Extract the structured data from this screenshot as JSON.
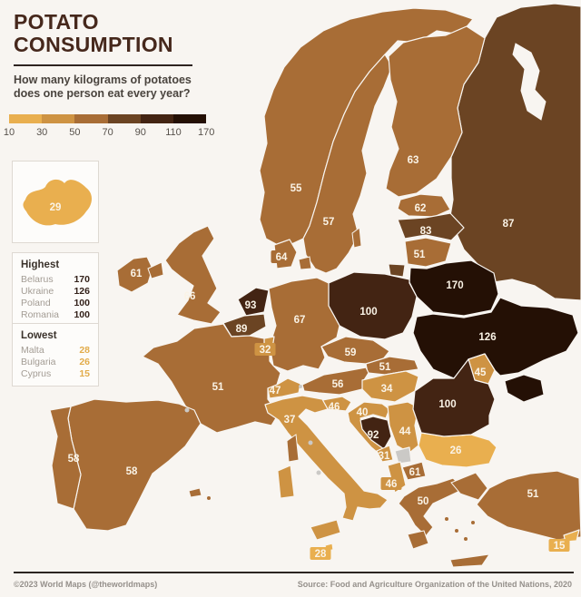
{
  "title": {
    "line1": "POTATO",
    "line2": "CONSUMPTION"
  },
  "subtitle": {
    "line1": "How many kilograms of potatoes",
    "line2": "does one person eat every year?"
  },
  "legend": {
    "ticks": [
      "10",
      "30",
      "50",
      "70",
      "90",
      "110",
      "170"
    ],
    "colors": [
      "#E9AF4F",
      "#CE9343",
      "#A86D36",
      "#6B4423",
      "#432413",
      "#241005"
    ],
    "thresholds": [
      30,
      50,
      70,
      90,
      110
    ]
  },
  "highest": {
    "heading": "Highest",
    "rows": [
      {
        "name": "Belarus",
        "value": "170"
      },
      {
        "name": "Ukraine",
        "value": "126"
      },
      {
        "name": "Poland",
        "value": "100"
      },
      {
        "name": "Romania",
        "value": "100"
      }
    ]
  },
  "lowest": {
    "heading": "Lowest",
    "rows": [
      {
        "name": "Malta",
        "value": "28"
      },
      {
        "name": "Bulgaria",
        "value": "26"
      },
      {
        "name": "Cyprus",
        "value": "15"
      }
    ]
  },
  "footer": {
    "left": "©2023 World Maps (@theworldmaps)",
    "right": "Source: Food and Agriculture Organization of the United Nations, 2020"
  },
  "colors": {
    "background": "#F8F5F1",
    "sea": "#F8F5F1",
    "border": "#F8F5F1",
    "no_data": "#CBC9C6",
    "label_text": "#FAF3E6",
    "title": "#46281C"
  },
  "map": {
    "countries": [
      {
        "id": "russia",
        "name": "Russia",
        "value": 87
      },
      {
        "id": "norway",
        "name": "Norway",
        "value": 55
      },
      {
        "id": "sweden",
        "name": "Sweden",
        "value": 57
      },
      {
        "id": "finland",
        "name": "Finland",
        "value": 63
      },
      {
        "id": "estonia",
        "name": "Estonia",
        "value": 62
      },
      {
        "id": "latvia",
        "name": "Latvia",
        "value": 83
      },
      {
        "id": "lithuania",
        "name": "Lithuania",
        "value": 51
      },
      {
        "id": "belarus",
        "name": "Belarus",
        "value": 170
      },
      {
        "id": "ukraine",
        "name": "Ukraine",
        "value": 126
      },
      {
        "id": "moldova",
        "name": "Moldova",
        "value": 45
      },
      {
        "id": "poland",
        "name": "Poland",
        "value": 100
      },
      {
        "id": "germany",
        "name": "Germany",
        "value": 67
      },
      {
        "id": "denmark",
        "name": "Denmark",
        "value": 64
      },
      {
        "id": "netherlands",
        "name": "Netherlands",
        "value": 93
      },
      {
        "id": "belgium",
        "name": "Belgium",
        "value": 89
      },
      {
        "id": "luxembourg",
        "name": "Luxembourg",
        "value": 32
      },
      {
        "id": "uk",
        "name": "United Kingdom",
        "value": 66
      },
      {
        "id": "ireland",
        "name": "Ireland",
        "value": 61
      },
      {
        "id": "france",
        "name": "France",
        "value": 51
      },
      {
        "id": "switzerland",
        "name": "Switzerland",
        "value": 47
      },
      {
        "id": "czechia",
        "name": "Czechia",
        "value": 59
      },
      {
        "id": "slovakia",
        "name": "Slovakia",
        "value": 51
      },
      {
        "id": "austria",
        "name": "Austria",
        "value": 56
      },
      {
        "id": "hungary",
        "name": "Hungary",
        "value": 34
      },
      {
        "id": "slovenia",
        "name": "Slovenia",
        "value": 46
      },
      {
        "id": "croatia",
        "name": "Croatia",
        "value": 40
      },
      {
        "id": "bosnia",
        "name": "Bosnia and Herzegovina",
        "value": 92
      },
      {
        "id": "serbia",
        "name": "Serbia",
        "value": 44
      },
      {
        "id": "montenegro",
        "name": "Montenegro",
        "value": 31
      },
      {
        "id": "kosovo",
        "name": "Kosovo",
        "value": null
      },
      {
        "id": "nmacedonia",
        "name": "North Macedonia",
        "value": 61
      },
      {
        "id": "albania",
        "name": "Albania",
        "value": 46
      },
      {
        "id": "greece",
        "name": "Greece",
        "value": 50
      },
      {
        "id": "bulgaria",
        "name": "Bulgaria",
        "value": 26
      },
      {
        "id": "romania",
        "name": "Romania",
        "value": 100
      },
      {
        "id": "turkey",
        "name": "Turkey",
        "value": 51
      },
      {
        "id": "italy",
        "name": "Italy",
        "value": 37
      },
      {
        "id": "spain",
        "name": "Spain",
        "value": 58
      },
      {
        "id": "portugal",
        "name": "Portugal",
        "value": 58
      },
      {
        "id": "malta",
        "name": "Malta",
        "value": 28
      },
      {
        "id": "cyprus",
        "name": "Cyprus",
        "value": 15
      },
      {
        "id": "iceland",
        "name": "Iceland",
        "value": 29
      }
    ]
  }
}
